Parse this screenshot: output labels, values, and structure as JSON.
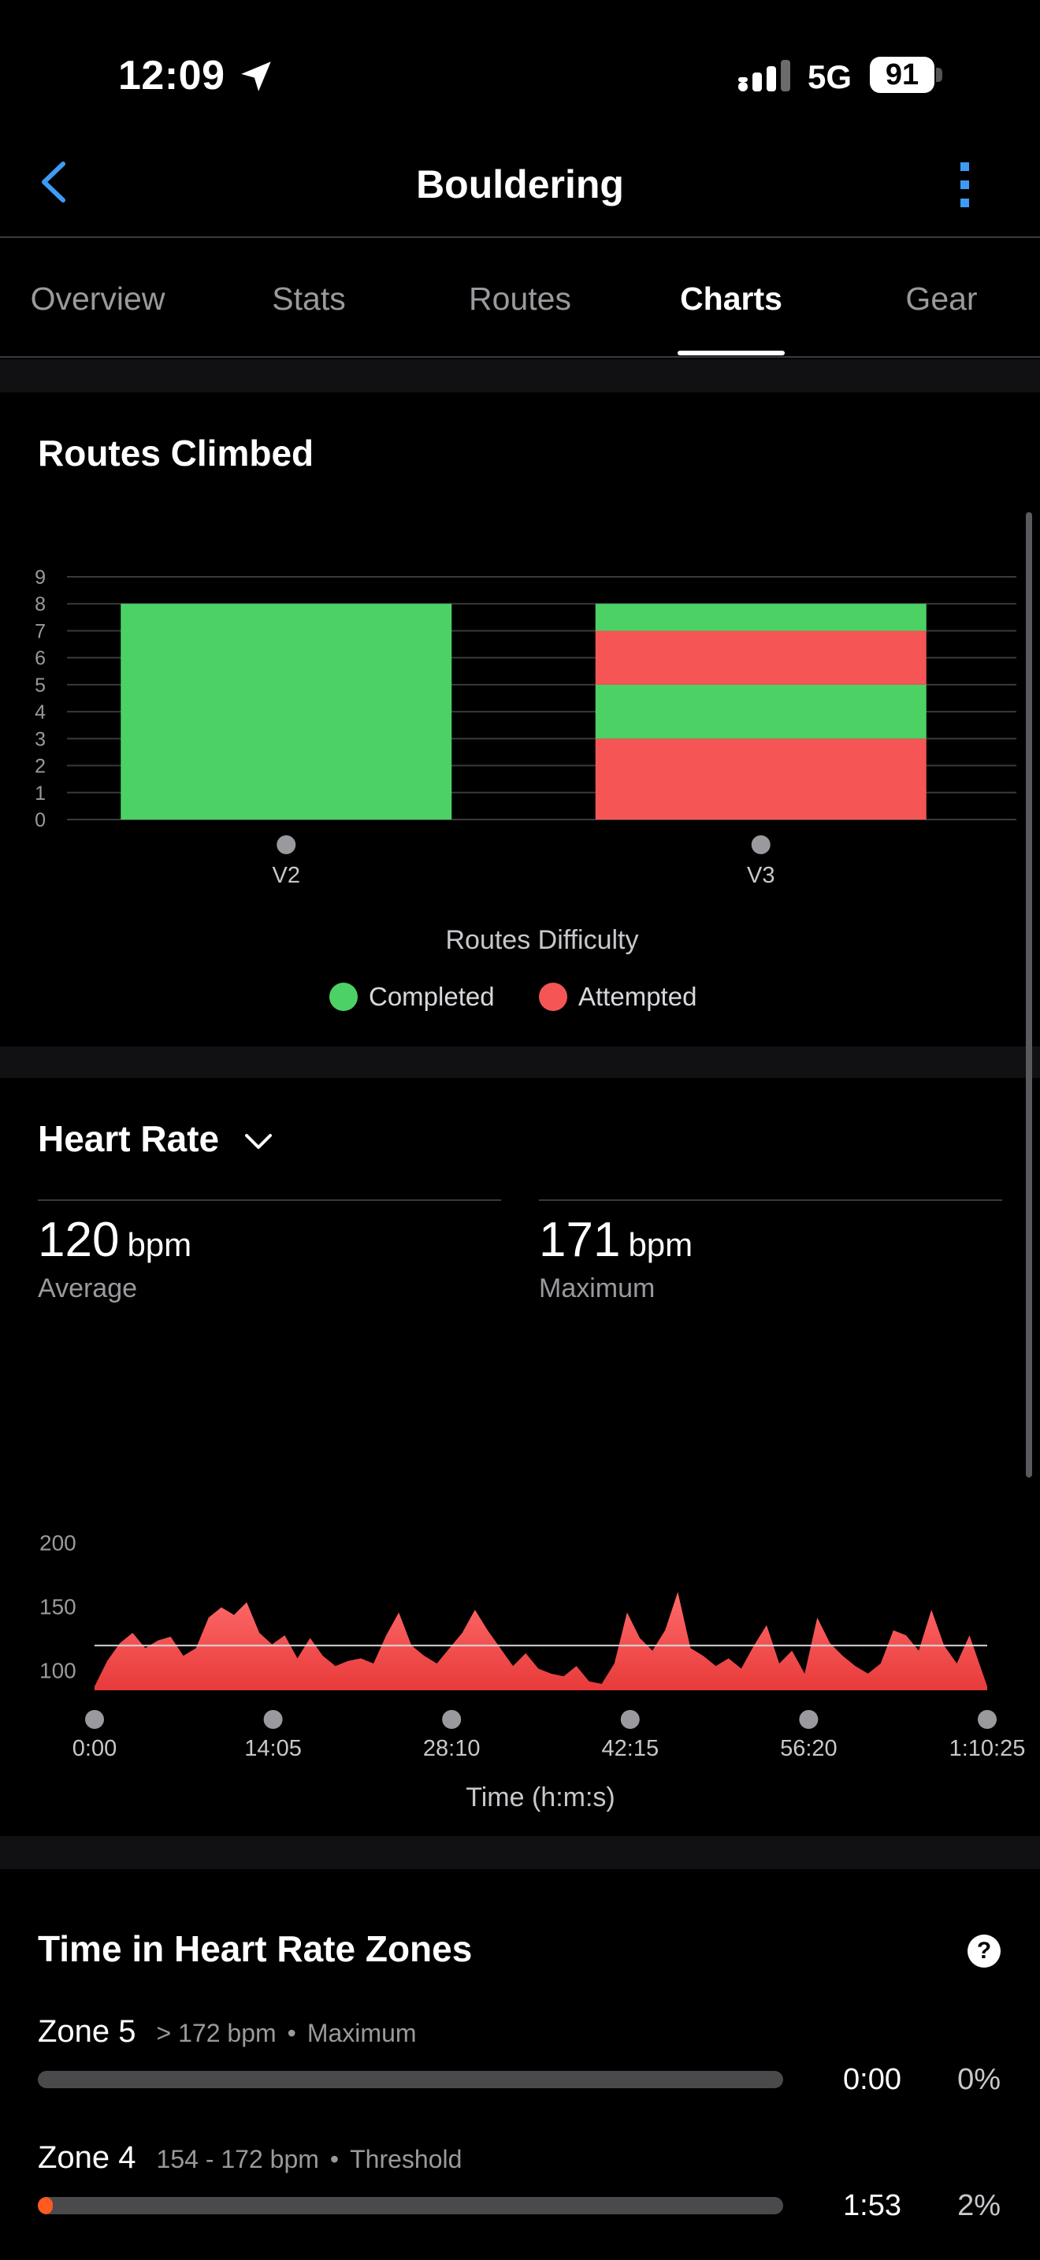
{
  "status_bar": {
    "time": "12:09",
    "network": "5G",
    "battery": "91"
  },
  "header": {
    "title": "Bouldering"
  },
  "tabs": [
    {
      "label": "Overview",
      "active": false
    },
    {
      "label": "Stats",
      "active": false
    },
    {
      "label": "Routes",
      "active": false
    },
    {
      "label": "Charts",
      "active": true
    },
    {
      "label": "Gear",
      "active": false
    }
  ],
  "routes_climbed": {
    "title": "Routes Climbed",
    "colors": {
      "completed": "#4cd165",
      "attempted": "#f55555"
    },
    "legend": {
      "completed": "Completed",
      "attempted": "Attempted"
    }
  },
  "heart_rate": {
    "title": "Heart Rate",
    "average": {
      "value": "120",
      "unit": "bpm",
      "label": "Average"
    },
    "maximum": {
      "value": "171",
      "unit": "bpm",
      "label": "Maximum"
    },
    "fill_color": "#e83a3a"
  },
  "hr_zones": {
    "title": "Time in Heart Rate Zones",
    "help_glyph": "?",
    "zones": [
      {
        "name": "Zone 5",
        "range": "> 172 bpm",
        "kind": "Maximum",
        "time": "0:00",
        "percent": "0%",
        "fraction": 0
      },
      {
        "name": "Zone 4",
        "range": "154 - 172 bpm",
        "kind": "Threshold",
        "time": "1:53",
        "percent": "2%",
        "fraction": 0.02
      }
    ]
  },
  "chart_data": [
    {
      "type": "bar",
      "stacked": true,
      "categories": [
        "V2",
        "V3"
      ],
      "xlabel": "Routes Difficulty",
      "ylim": [
        0,
        9
      ],
      "yticks": [
        0,
        1,
        2,
        3,
        4,
        5,
        6,
        7,
        8,
        9
      ],
      "segments": [
        [
          {
            "status": "completed",
            "value": 8
          }
        ],
        [
          {
            "status": "attempted",
            "value": 3
          },
          {
            "status": "completed",
            "value": 2
          },
          {
            "status": "attempted",
            "value": 2
          },
          {
            "status": "completed",
            "value": 1
          }
        ]
      ],
      "series": [
        {
          "name": "Completed",
          "values": [
            8,
            3
          ]
        },
        {
          "name": "Attempted",
          "values": [
            0,
            5
          ]
        }
      ],
      "legend_position": "bottom",
      "grid": true
    },
    {
      "type": "area",
      "xlabel": "Time (h:m:s)",
      "ylim": [
        85,
        200
      ],
      "yticks": [
        100,
        150,
        200
      ],
      "xticks": [
        "0:00",
        "14:05",
        "28:10",
        "42:15",
        "56:20",
        "1:10:25"
      ],
      "reference_line": 120,
      "x_minutes": [
        0,
        1,
        2,
        3,
        4,
        5,
        6,
        7,
        8,
        9,
        10,
        11,
        12,
        13,
        14,
        15,
        16,
        17,
        18,
        19,
        20,
        21,
        22,
        23,
        24,
        25,
        26,
        27,
        28,
        29,
        30,
        31,
        32,
        33,
        34,
        35,
        36,
        37,
        38,
        39,
        40,
        41,
        42,
        43,
        44,
        45,
        46,
        47,
        48,
        49,
        50,
        51,
        52,
        53,
        54,
        55,
        56,
        57,
        58,
        59,
        60,
        61,
        62,
        63,
        64,
        65,
        66,
        67,
        68,
        69,
        70.4
      ],
      "y": [
        88,
        108,
        122,
        130,
        118,
        124,
        127,
        112,
        118,
        142,
        150,
        144,
        154,
        130,
        121,
        128,
        110,
        126,
        112,
        104,
        108,
        110,
        106,
        128,
        146,
        120,
        112,
        106,
        118,
        130,
        148,
        132,
        118,
        104,
        114,
        102,
        98,
        96,
        104,
        92,
        90,
        106,
        146,
        126,
        116,
        132,
        162,
        118,
        112,
        104,
        110,
        102,
        120,
        136,
        106,
        116,
        98,
        142,
        122,
        112,
        104,
        98,
        106,
        132,
        128,
        116,
        148,
        120,
        106,
        128,
        88
      ],
      "legend_position": "none",
      "grid": false
    }
  ]
}
